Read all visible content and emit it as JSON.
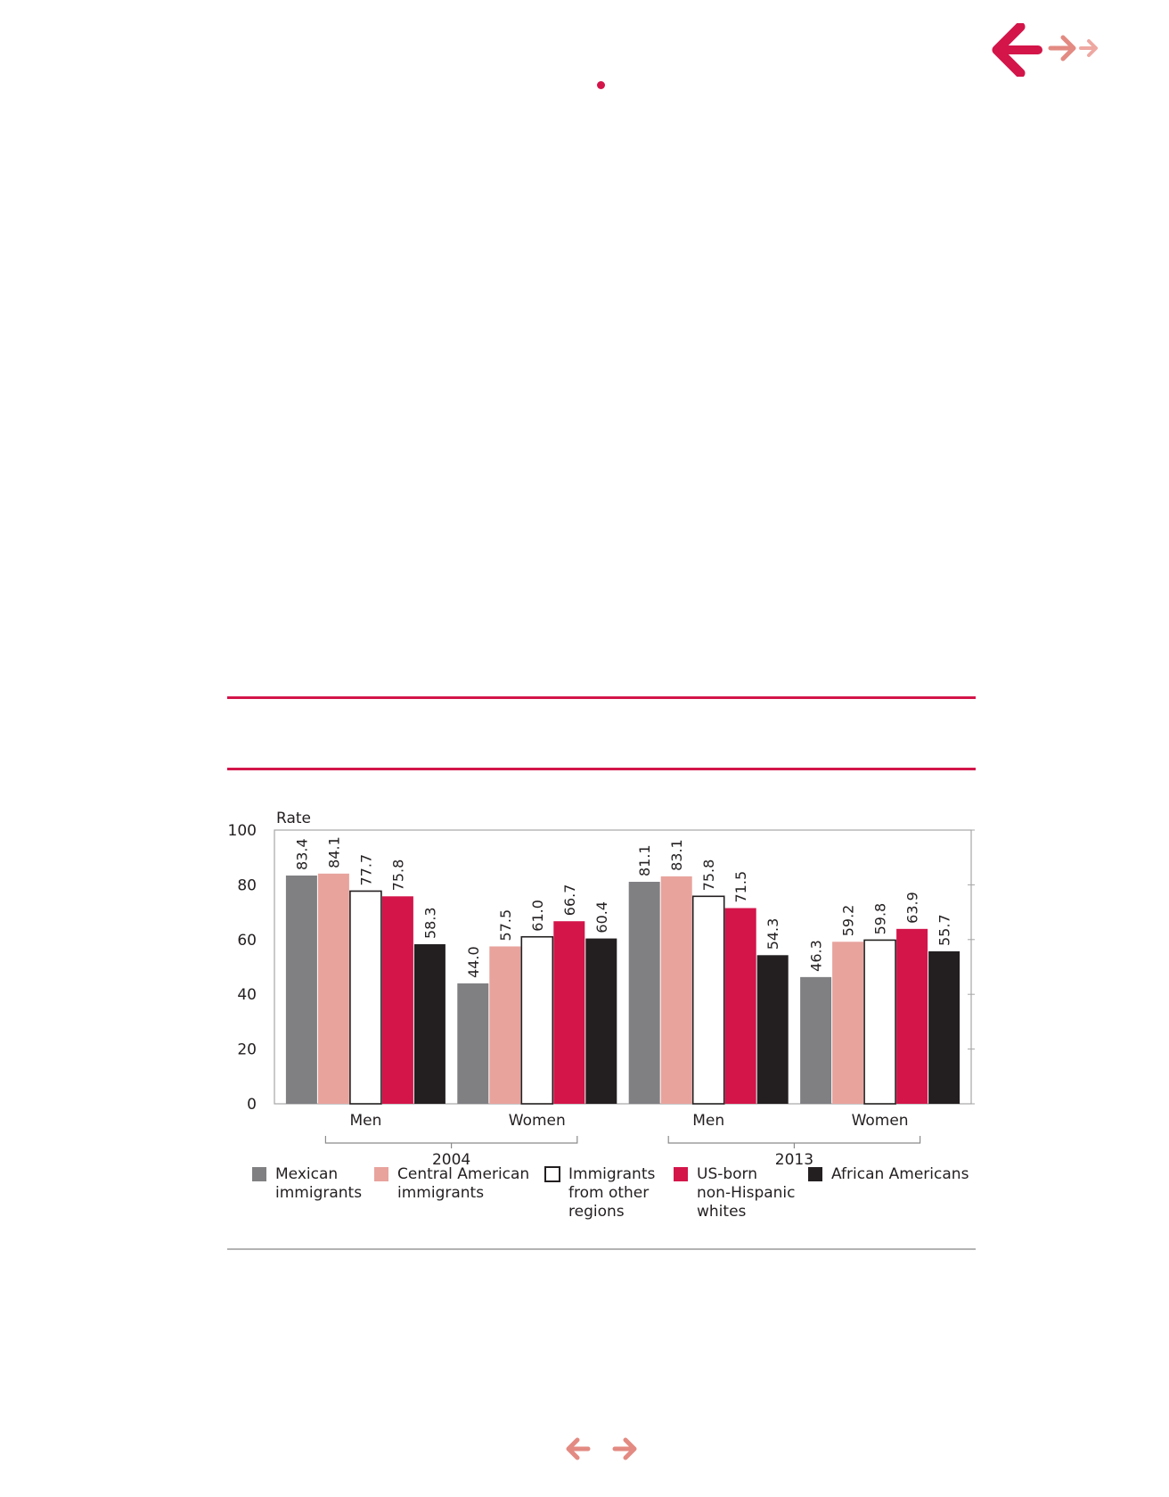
{
  "chart_data": {
    "type": "bar",
    "title": "",
    "ylabel": "Rate",
    "xlabel": "",
    "ylim": [
      0,
      100
    ],
    "yticks": [
      0,
      20,
      40,
      60,
      80,
      100
    ],
    "groups": [
      {
        "year": "2004",
        "categories": [
          "Men",
          "Women"
        ]
      },
      {
        "year": "2013",
        "categories": [
          "Men",
          "Women"
        ]
      }
    ],
    "categories": [
      "Men",
      "Women",
      "Men",
      "Women"
    ],
    "series": [
      {
        "name": "Mexican immigrants",
        "legend_lines": [
          "Mexican",
          "immigrants"
        ],
        "color": "#808083",
        "stroke": "#808083",
        "values": [
          83.4,
          44.0,
          81.1,
          46.3
        ],
        "labels": [
          "83.4",
          "44.0",
          "81.1",
          "46.3"
        ]
      },
      {
        "name": "Central American immigrants",
        "legend_lines": [
          "Central American",
          "immigrants"
        ],
        "color": "#e8a39d",
        "stroke": "#e8a39d",
        "values": [
          84.1,
          57.5,
          83.1,
          59.2
        ],
        "labels": [
          "84.1",
          "57.5",
          "83.1",
          "59.2"
        ]
      },
      {
        "name": "Immigrants from other regions",
        "legend_lines": [
          "Immigrants",
          "from other",
          "regions"
        ],
        "color": "#ffffff",
        "stroke": "#231f20",
        "values": [
          77.7,
          61.0,
          75.8,
          59.8
        ],
        "labels": [
          "77.7",
          "61.0",
          "75.8",
          "59.8"
        ]
      },
      {
        "name": "US-born non-Hispanic whites",
        "legend_lines": [
          "US-born",
          "non-Hispanic",
          "whites"
        ],
        "color": "#d3154a",
        "stroke": "#d3154a",
        "values": [
          75.8,
          66.7,
          71.5,
          63.9
        ],
        "labels": [
          "75.8",
          "66.7",
          "71.5",
          "63.9"
        ]
      },
      {
        "name": "African Americans",
        "legend_lines": [
          "African Americans"
        ],
        "color": "#231f20",
        "stroke": "#231f20",
        "values": [
          58.3,
          60.4,
          54.3,
          55.7
        ],
        "labels": [
          "58.3",
          "60.4",
          "54.3",
          "55.7"
        ]
      }
    ],
    "grid": false,
    "legend_position": "bottom"
  },
  "icons": {
    "nav_top": [
      "back-arrow-icon",
      "forward-arrow-icon",
      "forward-arrow-small-icon"
    ],
    "nav_bottom": [
      "previous-page-icon",
      "next-page-icon"
    ]
  },
  "colors": {
    "accent": "#d3154a",
    "nav_light": "#e38a82",
    "nav_lighter": "#eea8a2"
  }
}
